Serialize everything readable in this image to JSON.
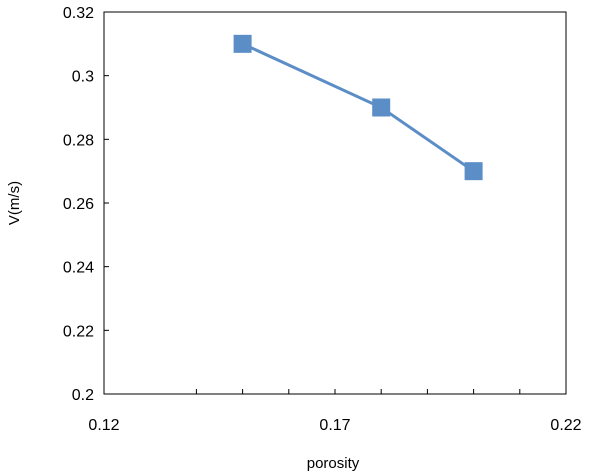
{
  "chart_data": {
    "type": "line",
    "xlabel": "porosity",
    "ylabel": "V(m/s)",
    "xlim": [
      0.12,
      0.22
    ],
    "ylim": [
      0.2,
      0.32
    ],
    "x_ticks": [
      0.12,
      0.17,
      0.22
    ],
    "x_tick_labels": [
      "0.12",
      "0.17",
      "0.22"
    ],
    "x_minor_ticks": [
      0.14,
      0.15,
      0.16,
      0.18,
      0.19,
      0.2,
      0.21
    ],
    "y_ticks": [
      0.2,
      0.22,
      0.24,
      0.26,
      0.28,
      0.3,
      0.32
    ],
    "y_tick_labels": [
      "0.2",
      "0.22",
      "0.24",
      "0.26",
      "0.28",
      "0.3",
      "0.32"
    ],
    "grid": false,
    "legend": "none",
    "series": [
      {
        "x": [
          0.15,
          0.18,
          0.2
        ],
        "y": [
          0.31,
          0.29,
          0.27
        ],
        "color": "#5b8ec6",
        "marker": "square"
      }
    ]
  }
}
